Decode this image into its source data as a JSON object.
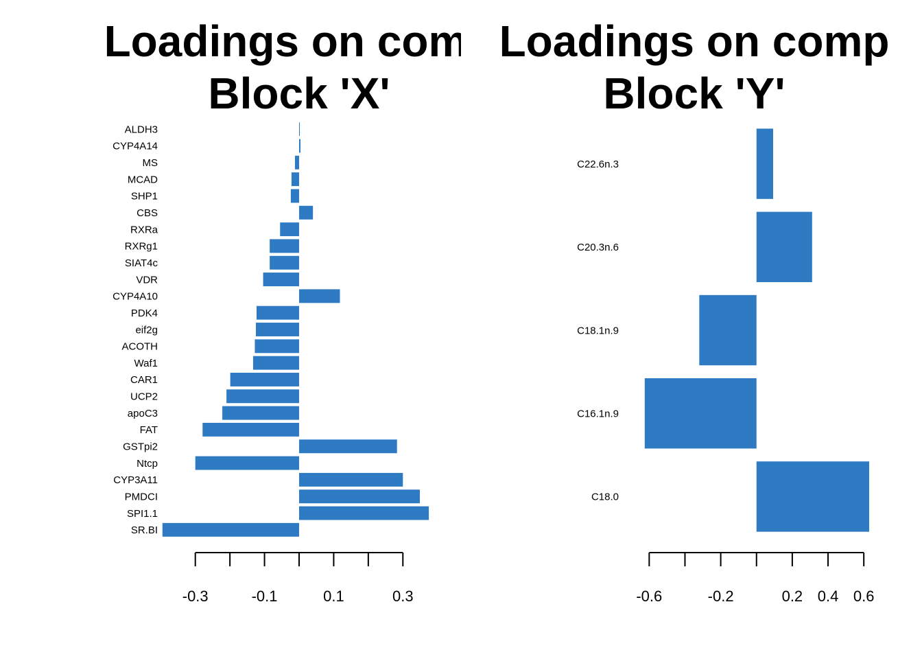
{
  "chart_data": [
    {
      "type": "bar",
      "orientation": "horizontal",
      "title_line1": "Loadings on comp",
      "title_line2": "Block 'X'",
      "color": "#2E7BC4",
      "categories": [
        "ALDH3",
        "CYP4A14",
        "MS",
        "MCAD",
        "SHP1",
        "CBS",
        "RXRa",
        "RXRg1",
        "SIAT4c",
        "VDR",
        "CYP4A10",
        "PDK4",
        "eif2g",
        "ACOTH",
        "Waf1",
        "CAR1",
        "UCP2",
        "apoC3",
        "FAT",
        "GSTpi2",
        "Ntcp",
        "CYP3A11",
        "PMDCI",
        "SPI1.1",
        "SR.BI"
      ],
      "values": [
        0.002,
        0.004,
        -0.012,
        -0.022,
        -0.024,
        0.04,
        -0.055,
        -0.085,
        -0.085,
        -0.104,
        0.118,
        -0.123,
        -0.125,
        -0.128,
        -0.133,
        -0.199,
        -0.21,
        -0.222,
        -0.279,
        0.283,
        -0.3,
        0.3,
        0.349,
        0.375,
        -0.395
      ],
      "xticks": [
        -0.3,
        -0.2,
        -0.1,
        0.0,
        0.1,
        0.2,
        0.3
      ],
      "xtick_labels": [
        "-0.3",
        "-0.1",
        "0.1",
        "0.3"
      ],
      "xtick_label_values": [
        -0.3,
        -0.1,
        0.1,
        0.3
      ],
      "xlim": [
        -0.42,
        0.42
      ]
    },
    {
      "type": "bar",
      "orientation": "horizontal",
      "title_line1": "Loadings on comp",
      "title_line2": "Block 'Y'",
      "color": "#2E7BC4",
      "categories": [
        "C22.6n.3",
        "C20.3n.6",
        "C18.1n.9",
        "C16.1n.9",
        "C18.0"
      ],
      "values": [
        0.093,
        0.311,
        -0.32,
        -0.625,
        0.63
      ],
      "xticks": [
        -0.6,
        -0.4,
        -0.2,
        0.0,
        0.2,
        0.4,
        0.6
      ],
      "xtick_labels": [
        "-0.6",
        "-0.2",
        "0.2",
        "0.4",
        "0.6"
      ],
      "xtick_label_values": [
        -0.6,
        -0.2,
        0.2,
        0.4,
        0.6
      ],
      "xlim": [
        -0.65,
        0.65
      ]
    }
  ]
}
